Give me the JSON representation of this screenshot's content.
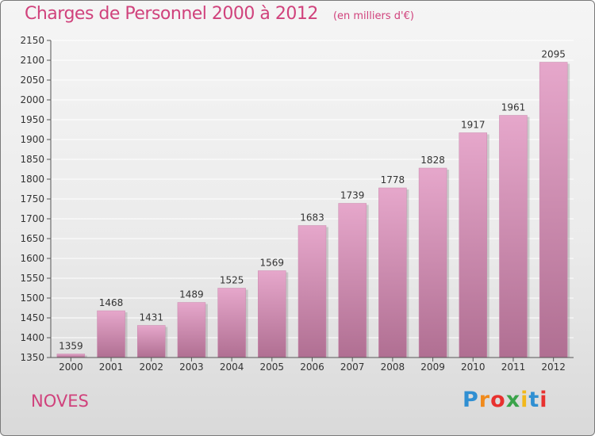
{
  "title": "Charges de Personnel 2000 à 2012",
  "subtitle": "(en milliers d'€)",
  "town": "NOVES",
  "brand": {
    "name": "Proxiti",
    "letters": [
      "P",
      "r",
      "o",
      "x",
      "i",
      "t",
      "i"
    ],
    "colors": [
      "#2f8fd2",
      "#f08a1c",
      "#e8312f",
      "#3aa34a",
      "#f2b81b",
      "#2f8fd2",
      "#e8312f"
    ]
  },
  "chart_data": {
    "type": "bar",
    "title": "Charges de Personnel 2000 à 2012",
    "subtitle": "(en milliers d'€)",
    "categories": [
      "2000",
      "2001",
      "2002",
      "2003",
      "2004",
      "2005",
      "2006",
      "2007",
      "2008",
      "2009",
      "2010",
      "2011",
      "2012"
    ],
    "values": [
      1359,
      1468,
      1431,
      1489,
      1525,
      1569,
      1683,
      1739,
      1778,
      1828,
      1917,
      1961,
      2095
    ],
    "ylim": [
      1350,
      2150
    ],
    "yticks": [
      1350,
      1400,
      1450,
      1500,
      1550,
      1600,
      1650,
      1700,
      1750,
      1800,
      1850,
      1900,
      1950,
      2000,
      2050,
      2100,
      2150
    ],
    "grid": true,
    "bar_color_top": "#e6a7cb",
    "bar_color_bottom": "#b06f92",
    "grid_color": "#ffffff"
  }
}
